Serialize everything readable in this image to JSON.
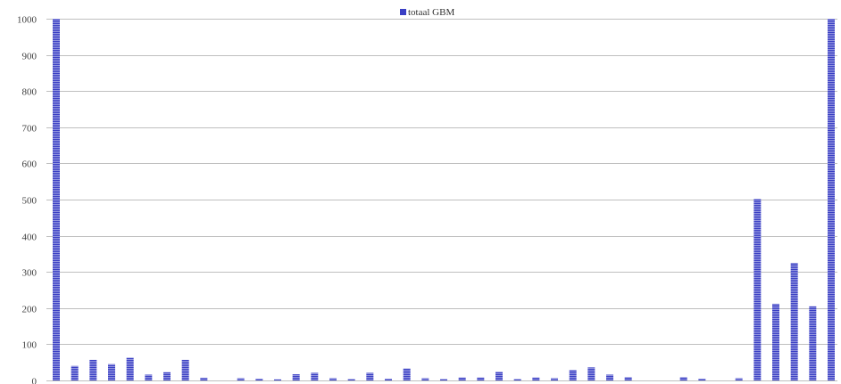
{
  "chart_data": {
    "type": "bar",
    "legend": {
      "label": "totaal GBM",
      "placement": "top-center"
    },
    "ylim": [
      0,
      1000
    ],
    "yticks": [
      0,
      100,
      200,
      300,
      400,
      500,
      600,
      700,
      800,
      900,
      1000
    ],
    "grid": true,
    "series": [
      {
        "name": "totaal GBM",
        "color": "#3a3fc4",
        "values": [
          1000,
          40,
          57,
          45,
          63,
          16,
          23,
          57,
          7,
          0,
          6,
          5,
          3,
          17,
          21,
          6,
          4,
          21,
          5,
          33,
          6,
          4,
          8,
          8,
          24,
          4,
          8,
          6,
          29,
          36,
          16,
          9,
          0,
          0,
          9,
          5,
          0,
          6,
          502,
          212,
          325,
          205,
          1000
        ]
      }
    ]
  }
}
